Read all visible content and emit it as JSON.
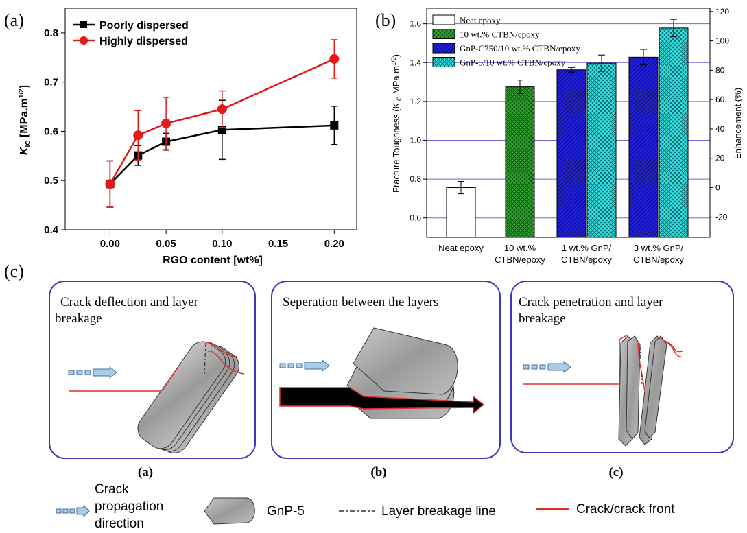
{
  "panel_labels": {
    "a": "(a)",
    "b": "(b)",
    "c": "(c)"
  },
  "chart_data": [
    {
      "type": "line",
      "xlabel": "RGO content [wt%]",
      "ylabel": "K",
      "ylabel_sub": "IC",
      "ylabel_unit": " [MPa.m",
      "ylabel_sup": "1/2",
      "ylabel_close": "]",
      "xlim": [
        -0.04,
        0.22
      ],
      "ylim": [
        0.4,
        0.85
      ],
      "xticks": [
        "0.00",
        "0.05",
        "0.10",
        "0.15",
        "0.20"
      ],
      "xtick_values": [
        0.0,
        0.05,
        0.1,
        0.15,
        0.2
      ],
      "yticks": [
        "0.4",
        "0.5",
        "0.6",
        "0.7",
        "0.8"
      ],
      "ytick_values": [
        0.4,
        0.5,
        0.6,
        0.7,
        0.8
      ],
      "x": [
        0.0,
        0.025,
        0.05,
        0.1,
        0.2
      ],
      "series": [
        {
          "name": "Poorly dispersed",
          "color": "#000000",
          "marker": "square",
          "values": [
            0.493,
            0.551,
            0.579,
            0.603,
            0.612
          ],
          "errors": [
            0.047,
            0.02,
            0.017,
            0.06,
            0.039
          ]
        },
        {
          "name": "Highly dispersed",
          "color": "#e31a1c",
          "marker": "circle",
          "values": [
            0.493,
            0.592,
            0.616,
            0.645,
            0.747
          ],
          "errors": [
            0.047,
            0.05,
            0.053,
            0.037,
            0.039
          ]
        }
      ],
      "legend": "top-left"
    },
    {
      "type": "bar",
      "ylabel": "Fracture Toughness (K",
      "ylabel_sub": "IC",
      "ylabel_unit": " MPa m",
      "ylabel_sup": "1/2",
      "ylabel_close": ")",
      "y2label": "Enhancement (%)",
      "ylim": [
        0.5,
        1.68
      ],
      "yticks": [
        "0.6",
        "0.8",
        "1.0",
        "1.2",
        "1.4",
        "1.6"
      ],
      "ytick_values": [
        0.6,
        0.8,
        1.0,
        1.2,
        1.4,
        1.6
      ],
      "y2ticks": [
        "-20",
        "0",
        "20",
        "40",
        "60",
        "80",
        "100",
        "120"
      ],
      "y2tick_values": [
        -20,
        0,
        20,
        40,
        60,
        80,
        100,
        120
      ],
      "categories": [
        {
          "line1": "Neat epoxy",
          "line2": ""
        },
        {
          "line1": "10 wt.%",
          "line2": "CTBN/epoxy"
        },
        {
          "line1": "1 wt.% GnP/",
          "line2": "CTBN/epoxy"
        },
        {
          "line1": "3 wt.% GnP/",
          "line2": "CTBN/epoxy"
        }
      ],
      "bars": [
        {
          "category": 0,
          "series": 0,
          "value": 0.756,
          "error": 0.032
        },
        {
          "category": 1,
          "series": 1,
          "value": 1.275,
          "error": 0.035
        },
        {
          "category": 2,
          "series": 2,
          "value": 1.363,
          "error": 0.012
        },
        {
          "category": 2,
          "series": 3,
          "value": 1.397,
          "error": 0.042
        },
        {
          "category": 3,
          "series": 2,
          "value": 1.428,
          "error": 0.04
        },
        {
          "category": 3,
          "series": 3,
          "value": 1.578,
          "error": 0.045
        }
      ],
      "series": [
        {
          "name": "Neat epoxy",
          "fill": "#ffffff",
          "pattern": "none"
        },
        {
          "name": "10 wt.% CTBN/cpoxy",
          "fill": "#2ca02c",
          "pattern": "cross"
        },
        {
          "name": "GnP-C750/10 wt.% CTBN/epoxy",
          "fill": "#1f1fd6",
          "pattern": "diagonal"
        },
        {
          "name": "GnP-5/10 wt.% CTBN/cpoxy",
          "fill": "#33e0e0",
          "pattern": "cross"
        }
      ],
      "legend": "top-left"
    }
  ],
  "diagram": {
    "boxes": [
      {
        "title_line1": "Crack deflection and layer",
        "title_line2": "breakage",
        "caption": "(a)"
      },
      {
        "title_line1": "Seperation between the layers",
        "title_line2": "",
        "caption": "(b)"
      },
      {
        "title_line1": "Crack penetration and layer",
        "title_line2": "breakage",
        "caption": "(c)"
      }
    ],
    "legend": {
      "arrow_line1": "Crack",
      "arrow_line2": "propagation",
      "arrow_line3": "direction",
      "gnp": "GnP-5",
      "breakage": "Layer breakage line",
      "crack": "Crack/crack front"
    },
    "colors": {
      "box_border": "#3a3ab8",
      "crack": "#e0302a",
      "gnp_fill": "#a9a9a9"
    }
  }
}
